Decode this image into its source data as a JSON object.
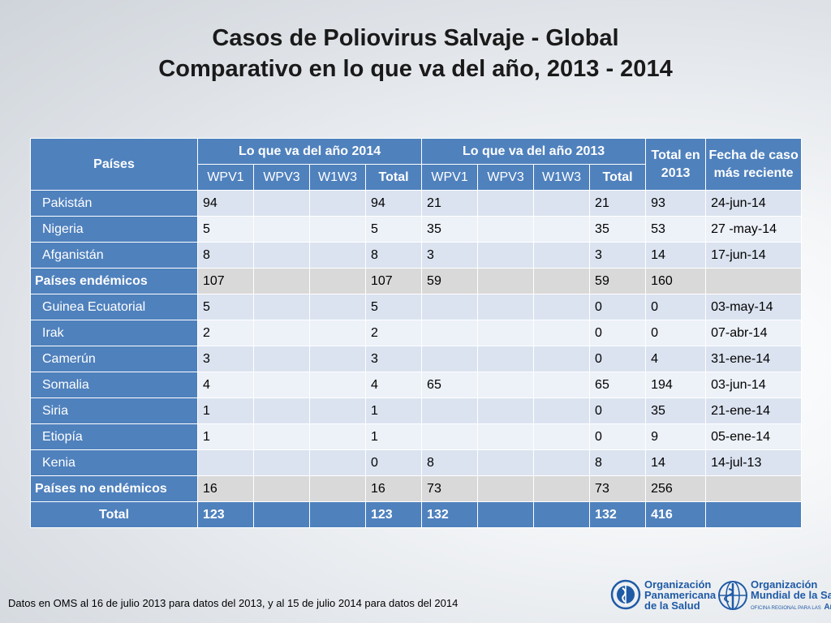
{
  "title": {
    "line1": "Casos de Poliovirus Salvaje - Global",
    "line2": "Comparativo en lo que va del año, 2013 - 2014"
  },
  "table": {
    "headers": {
      "paises": "Países",
      "group2014": "Lo que va del año 2014",
      "group2013": "Lo que va del año 2013",
      "total2013": "Total en 2013",
      "fecha": "Fecha de caso más reciente",
      "sub": [
        "WPV1",
        "WPV3",
        "W1W3",
        "Total",
        "WPV1",
        "WPV3",
        "W1W3",
        "Total"
      ]
    },
    "rows": [
      {
        "country": "Pakistán",
        "type": "country",
        "cells": [
          "94",
          "",
          "",
          "94",
          "21",
          "",
          "",
          "21",
          "93",
          "24-jun-14"
        ]
      },
      {
        "country": "Nigeria",
        "type": "country",
        "cells": [
          "5",
          "",
          "",
          "5",
          "35",
          "",
          "",
          "35",
          "53",
          "27 -may-14"
        ]
      },
      {
        "country": "Afganistán",
        "type": "country",
        "cells": [
          "8",
          "",
          "",
          "8",
          "3",
          "",
          "",
          "3",
          "14",
          "17-jun-14"
        ]
      },
      {
        "country": "Países endémicos",
        "type": "sum",
        "cells": [
          "107",
          "",
          "",
          "107",
          "59",
          "",
          "",
          "59",
          "160",
          ""
        ]
      },
      {
        "country": "Guinea Ecuatorial",
        "type": "country",
        "cells": [
          "5",
          "",
          "",
          "5",
          "",
          "",
          "",
          "0",
          "0",
          "03-may-14"
        ]
      },
      {
        "country": "Irak",
        "type": "country",
        "cells": [
          "2",
          "",
          "",
          "2",
          "",
          "",
          "",
          "0",
          "0",
          "07-abr-14"
        ]
      },
      {
        "country": "Camerún",
        "type": "country",
        "cells": [
          "3",
          "",
          "",
          "3",
          "",
          "",
          "",
          "0",
          "4",
          "31-ene-14"
        ]
      },
      {
        "country": "Somalia",
        "type": "country",
        "cells": [
          "4",
          "",
          "",
          "4",
          "65",
          "",
          "",
          "65",
          "194",
          "03-jun-14"
        ]
      },
      {
        "country": "Siria",
        "type": "country",
        "cells": [
          "1",
          "",
          "",
          "1",
          "",
          "",
          "",
          "0",
          "35",
          "21-ene-14"
        ]
      },
      {
        "country": "Etiopía",
        "type": "country",
        "cells": [
          "1",
          "",
          "",
          "1",
          "",
          "",
          "",
          "0",
          "9",
          "05-ene-14"
        ]
      },
      {
        "country": "Kenia",
        "type": "country",
        "cells": [
          "",
          "",
          "",
          "0",
          "8",
          "",
          "",
          "8",
          "14",
          "14-jul-13"
        ]
      },
      {
        "country": "Países no endémicos",
        "type": "sum",
        "cells": [
          "16",
          "",
          "",
          "16",
          "73",
          "",
          "",
          "73",
          "256",
          ""
        ]
      },
      {
        "country": "Total",
        "type": "total",
        "cells": [
          "123",
          "",
          "",
          "123",
          "132",
          "",
          "",
          "132",
          "416",
          ""
        ]
      }
    ]
  },
  "footnote": "Datos en OMS al 16 de julio 2013 para datos del 2013,  y al 15 de julio 2014 para datos del 2014",
  "logos": {
    "ops": {
      "line1": "Organización",
      "line2": "Panamericana",
      "line3": "de la Salud"
    },
    "oms": {
      "line1": "Organización",
      "line2": "Mundial de la Salud",
      "line3": "Américas",
      "sub": "OFICINA REGIONAL PARA LAS"
    }
  },
  "colors": {
    "header": "#4f81bd",
    "row_odd": "#dbe3f0",
    "row_even": "#edf1f8",
    "summary": "#d9d9d9",
    "logo_blue": "#1f5aa6"
  }
}
